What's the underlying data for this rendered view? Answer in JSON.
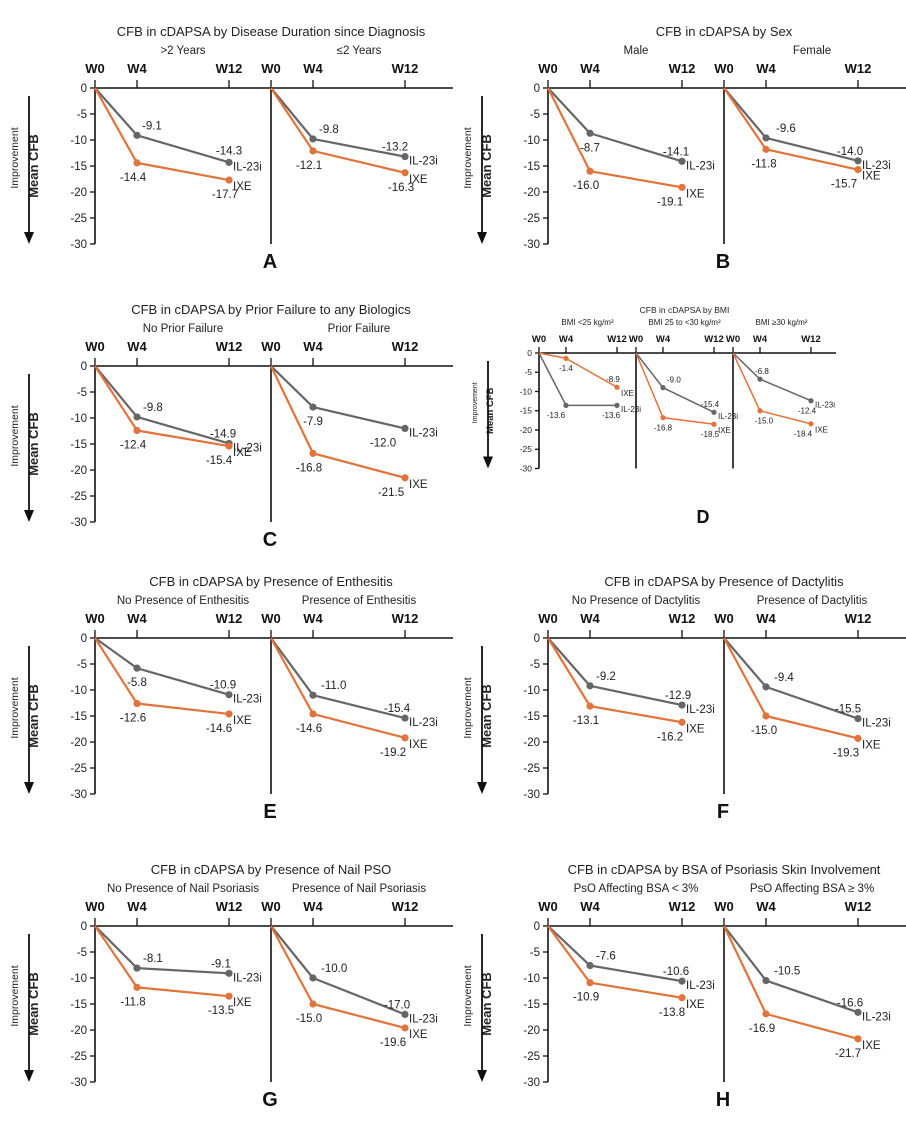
{
  "colors": {
    "ixe": "#e2733a",
    "il23i": "#666666",
    "axis": "#111111",
    "text": "#222222"
  },
  "common": {
    "ylabel": "Mean CFB",
    "improvement_label": "Improvement",
    "ticks": [
      "0",
      "-5",
      "-10",
      "-15",
      "-20",
      "-25",
      "-30"
    ],
    "weeks": [
      "W0",
      "W4",
      "W12"
    ]
  },
  "chart_data": [
    {
      "letter": "A",
      "type": "line",
      "title": "CFB in cDAPSA by Disease Duration since Diagnosis",
      "x": [
        "W0",
        "W4",
        "W12"
      ],
      "ylim": [
        -30,
        0
      ],
      "subgroups": [
        {
          "label": ">2 Years",
          "series": [
            {
              "name": "IL-23i",
              "values": [
                0,
                -9.1,
                -14.3
              ],
              "labels": [
                "",
                "-9.1",
                "-14.3"
              ]
            },
            {
              "name": "IXE",
              "values": [
                0,
                -14.4,
                -17.7
              ],
              "labels": [
                "",
                "-14.4",
                "-17.7"
              ]
            }
          ]
        },
        {
          "label": "≤2 Years",
          "series": [
            {
              "name": "IL-23i",
              "values": [
                0,
                -9.8,
                -13.2
              ],
              "labels": [
                "",
                "-9.8",
                "-13.2"
              ]
            },
            {
              "name": "IXE",
              "values": [
                0,
                -12.1,
                -16.3
              ],
              "labels": [
                "",
                "-12.1",
                "-16.3"
              ]
            }
          ]
        }
      ]
    },
    {
      "letter": "B",
      "type": "line",
      "title": "CFB in cDAPSA by Sex",
      "x": [
        "W0",
        "W4",
        "W12"
      ],
      "ylim": [
        -30,
        0
      ],
      "subgroups": [
        {
          "label": "Male",
          "series": [
            {
              "name": "IL-23i",
              "values": [
                0,
                -8.7,
                -14.1
              ],
              "labels": [
                "",
                "-8.7",
                "-14.1"
              ]
            },
            {
              "name": "IXE",
              "values": [
                0,
                -16.0,
                -19.1
              ],
              "labels": [
                "",
                "-16.0",
                "-19.1"
              ]
            }
          ]
        },
        {
          "label": "Female",
          "series": [
            {
              "name": "IL-23i",
              "values": [
                0,
                -9.6,
                -14.0
              ],
              "labels": [
                "",
                "-9.6",
                "-14.0"
              ]
            },
            {
              "name": "IXE",
              "values": [
                0,
                -11.8,
                -15.7
              ],
              "labels": [
                "",
                "-11.8",
                "-15.7"
              ]
            }
          ]
        }
      ]
    },
    {
      "letter": "C",
      "type": "line",
      "title": "CFB in cDAPSA by Prior Failure to any Biologics",
      "x": [
        "W0",
        "W4",
        "W12"
      ],
      "ylim": [
        -30,
        0
      ],
      "subgroups": [
        {
          "label": "No Prior Failure",
          "series": [
            {
              "name": "IL-23i",
              "values": [
                0,
                -9.8,
                -14.9
              ],
              "labels": [
                "",
                "-9.8",
                "-14.9"
              ]
            },
            {
              "name": "IXE",
              "values": [
                0,
                -12.4,
                -15.4
              ],
              "labels": [
                "",
                "-12.4",
                "-15.4"
              ]
            }
          ]
        },
        {
          "label": "Prior Failure",
          "series": [
            {
              "name": "IL-23i",
              "values": [
                0,
                -7.9,
                -12.0
              ],
              "labels": [
                "",
                "-7.9",
                "-12.0"
              ]
            },
            {
              "name": "IXE",
              "values": [
                0,
                -16.8,
                -21.5
              ],
              "labels": [
                "",
                "-16.8",
                "-21.5"
              ]
            }
          ]
        }
      ]
    },
    {
      "letter": "D",
      "type": "line",
      "title": "CFB in cDAPSA by BMI",
      "x": [
        "W0",
        "W4",
        "W12"
      ],
      "ylim": [
        -30,
        0
      ],
      "subgroups": [
        {
          "label": "BMI <25  kg/m²",
          "series": [
            {
              "name": "IL-23i",
              "values": [
                0,
                -13.6,
                -13.6
              ],
              "labels": [
                "",
                "-13.6",
                "-13.6"
              ]
            },
            {
              "name": "IXE",
              "values": [
                0,
                -1.4,
                -8.9
              ],
              "labels": [
                "",
                "-1.4",
                "-8.9"
              ]
            }
          ]
        },
        {
          "label": "BMI 25 to <30 kg/m²",
          "series": [
            {
              "name": "IL-23i",
              "values": [
                0,
                -9.0,
                -15.4
              ],
              "labels": [
                "",
                "-9.0",
                "-15.4"
              ]
            },
            {
              "name": "IXE",
              "values": [
                0,
                -16.8,
                -18.5
              ],
              "labels": [
                "",
                "-16.8",
                "-18.5"
              ]
            }
          ]
        },
        {
          "label": "BMI  ≥30 kg/m²",
          "series": [
            {
              "name": "IL-23i",
              "values": [
                0,
                -6.8,
                -12.4
              ],
              "labels": [
                "",
                "-6.8",
                "-12.4"
              ]
            },
            {
              "name": "IXE",
              "values": [
                0,
                -15.0,
                -18.4
              ],
              "labels": [
                "",
                "-15.0",
                "-18.4"
              ]
            }
          ]
        }
      ]
    },
    {
      "letter": "E",
      "type": "line",
      "title": "CFB in cDAPSA by Presence of Enthesitis",
      "x": [
        "W0",
        "W4",
        "W12"
      ],
      "ylim": [
        -30,
        0
      ],
      "subgroups": [
        {
          "label": "No Presence of Enthesitis",
          "series": [
            {
              "name": "IL-23i",
              "values": [
                0,
                -5.8,
                -10.9
              ],
              "labels": [
                "",
                "-5.8",
                "-10.9"
              ]
            },
            {
              "name": "IXE",
              "values": [
                0,
                -12.6,
                -14.6
              ],
              "labels": [
                "",
                "-12.6",
                "-14.6"
              ]
            }
          ]
        },
        {
          "label": "Presence of Enthesitis",
          "series": [
            {
              "name": "IL-23i",
              "values": [
                0,
                -11.0,
                -15.4
              ],
              "labels": [
                "",
                "-11.0",
                "-15.4"
              ]
            },
            {
              "name": "IXE",
              "values": [
                0,
                -14.6,
                -19.2
              ],
              "labels": [
                "",
                "-14.6",
                "-19.2"
              ]
            }
          ]
        }
      ]
    },
    {
      "letter": "F",
      "type": "line",
      "title": "CFB in cDAPSA by Presence of Dactylitis",
      "x": [
        "W0",
        "W4",
        "W12"
      ],
      "ylim": [
        -30,
        0
      ],
      "subgroups": [
        {
          "label": "No Presence of Dactylitis",
          "series": [
            {
              "name": "IL-23i",
              "values": [
                0,
                -9.2,
                -12.9
              ],
              "labels": [
                "",
                "-9.2",
                "-12.9"
              ]
            },
            {
              "name": "IXE",
              "values": [
                0,
                -13.1,
                -16.2
              ],
              "labels": [
                "",
                "-13.1",
                "-16.2"
              ]
            }
          ]
        },
        {
          "label": "Presence of Dactylitis",
          "series": [
            {
              "name": "IL-23i",
              "values": [
                0,
                -9.4,
                -15.5
              ],
              "labels": [
                "",
                "-9.4",
                "-15.5"
              ]
            },
            {
              "name": "IXE",
              "values": [
                0,
                -15.0,
                -19.3
              ],
              "labels": [
                "",
                "-15.0",
                "-19.3"
              ]
            }
          ]
        }
      ]
    },
    {
      "letter": "G",
      "type": "line",
      "title": "CFB in cDAPSA by Presence of Nail PSO",
      "x": [
        "W0",
        "W4",
        "W12"
      ],
      "ylim": [
        -30,
        0
      ],
      "subgroups": [
        {
          "label": "No Presence of Nail Psoriasis",
          "series": [
            {
              "name": "IL-23i",
              "values": [
                0,
                -8.1,
                -9.1
              ],
              "labels": [
                "",
                "-8.1",
                "-9.1"
              ]
            },
            {
              "name": "IXE",
              "values": [
                0,
                -11.8,
                -13.5
              ],
              "labels": [
                "",
                "-11.8",
                "-13.5"
              ]
            }
          ]
        },
        {
          "label": "Presence of Nail Psoriasis",
          "series": [
            {
              "name": "IL-23i",
              "values": [
                0,
                -10.0,
                -17.0
              ],
              "labels": [
                "",
                "-10.0",
                "-17.0"
              ]
            },
            {
              "name": "IXE",
              "values": [
                0,
                -15.0,
                -19.6
              ],
              "labels": [
                "",
                "-15.0",
                "-19.6"
              ]
            }
          ]
        }
      ]
    },
    {
      "letter": "H",
      "type": "line",
      "title": "CFB in cDAPSA by BSA of Psoriasis Skin Involvement",
      "x": [
        "W0",
        "W4",
        "W12"
      ],
      "ylim": [
        -30,
        0
      ],
      "subgroups": [
        {
          "label": "PsO Affecting BSA  < 3%",
          "series": [
            {
              "name": "IL-23i",
              "values": [
                0,
                -7.6,
                -10.6
              ],
              "labels": [
                "",
                "-7.6",
                "-10.6"
              ]
            },
            {
              "name": "IXE",
              "values": [
                0,
                -10.9,
                -13.8
              ],
              "labels": [
                "",
                "-10.9",
                "-13.8"
              ]
            }
          ]
        },
        {
          "label": "PsO Affecting BSA  ≥ 3%",
          "series": [
            {
              "name": "IL-23i",
              "values": [
                0,
                -10.5,
                -16.6
              ],
              "labels": [
                "",
                "-10.5",
                "-16.6"
              ]
            },
            {
              "name": "IXE",
              "values": [
                0,
                -16.9,
                -21.7
              ],
              "labels": [
                "",
                "-16.9",
                "-21.7"
              ]
            }
          ]
        }
      ]
    }
  ]
}
